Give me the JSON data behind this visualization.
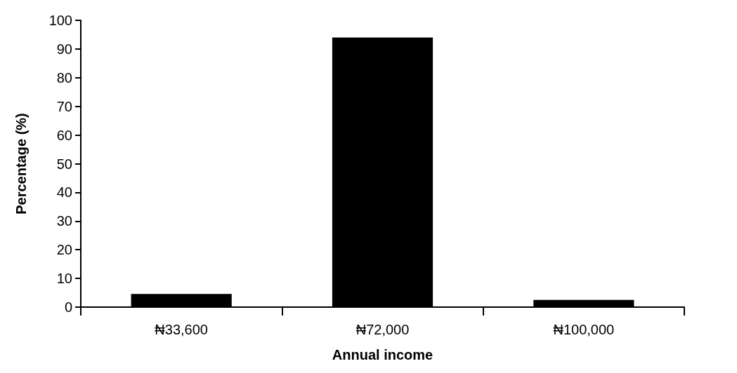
{
  "chart_data": {
    "type": "bar",
    "xlabel": "Annual income",
    "ylabel": "Percentage (%)",
    "categories": [
      "₦33,600",
      "₦72,000",
      "₦100,000"
    ],
    "values": [
      4.6,
      94,
      2.5
    ],
    "color": "#000000",
    "ylim": [
      0,
      100
    ],
    "yticks": [
      0,
      10,
      20,
      30,
      40,
      50,
      60,
      70,
      80,
      90,
      100
    ],
    "grid": false
  }
}
